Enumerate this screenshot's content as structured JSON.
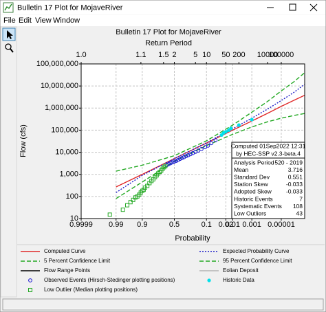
{
  "window": {
    "title": "Bulletin 17 Plot for MojaveRiver",
    "menu": [
      "File",
      "Edit",
      "View",
      "Window"
    ]
  },
  "chart_data": {
    "type": "probability",
    "title": "Bulletin 17 Plot for MojaveRiver",
    "x2_label": "Return Period",
    "x_label": "Probability",
    "y_label": "Flow (cfs)",
    "xscale": "normal-exceedance",
    "yscale": "log",
    "grid": true,
    "xlim": [
      0.9999,
      1e-07
    ],
    "xticks": [
      0.9999,
      0.99,
      0.9,
      0.5,
      0.1,
      0.02,
      0.01,
      0.001,
      {
        "value": 1e-05,
        "label": "0.00001"
      }
    ],
    "x2ticks": [
      {
        "value": 1.0001,
        "label": "1.0"
      },
      1.1,
      1.5,
      2,
      5,
      10,
      50,
      200,
      10000,
      100000
    ],
    "ylim": [
      10,
      100000000
    ],
    "yticks": [
      10,
      100,
      {
        "value": 1000,
        "label": "1,000"
      },
      {
        "value": 10000,
        "label": "10,000"
      },
      {
        "value": 100000,
        "label": "100,000"
      },
      {
        "value": 1000000,
        "label": "1,000,000"
      },
      {
        "value": 10000000,
        "label": "10,000,000"
      },
      {
        "value": 100000000,
        "label": "100,000,000"
      }
    ],
    "series": [
      {
        "name": "Computed Curve",
        "kind": "line",
        "style": "solid",
        "color": "#e02828",
        "x": [
          0.99,
          0.9,
          0.5,
          0.1,
          0.01,
          0.001,
          0.0001,
          1e-05,
          1e-06,
          1e-07
        ],
        "values": [
          270,
          1000,
          5200,
          26000,
          100000,
          260000,
          580000,
          1200000,
          2200000,
          3800000
        ]
      },
      {
        "name": "Expected Probability Curve",
        "kind": "line",
        "style": "dotted",
        "color": "#1c1cc8",
        "x": [
          0.99,
          0.9,
          0.5,
          0.1,
          0.01,
          0.001,
          0.0001,
          1e-05,
          1e-06,
          1e-07
        ],
        "values": [
          150,
          900,
          5200,
          27000,
          115000,
          350000,
          900000,
          2200000,
          5000000,
          12000000
        ]
      },
      {
        "name": "5 Percent Confidence Limit",
        "kind": "line",
        "style": "dashed",
        "color": "#22a822",
        "x": [
          0.99,
          0.9,
          0.5,
          0.1,
          0.01,
          0.001,
          0.0001,
          1e-05,
          1e-06,
          1e-07
        ],
        "values": [
          1400,
          2600,
          7000,
          33000,
          170000,
          650000,
          2000000,
          6000000,
          15000000,
          40000000
        ]
      },
      {
        "name": "95 Percent Confidence Limit",
        "kind": "line",
        "style": "dashed",
        "color": "#22a822",
        "x": [
          0.99,
          0.9,
          0.5,
          0.1,
          0.01,
          0.001,
          0.0001,
          1e-05,
          1e-06,
          1e-07
        ],
        "values": [
          80,
          450,
          3900,
          20000,
          65000,
          140000,
          240000,
          350000,
          460000,
          570000
        ]
      },
      {
        "name": "Flow Range Points",
        "kind": "line",
        "style": "solid",
        "color": "#000000",
        "x": [],
        "values": []
      },
      {
        "name": "Eolian Deposit",
        "kind": "line",
        "style": "solid",
        "color": "#b4b4b4",
        "x": [],
        "values": []
      },
      {
        "name": "Observed Events (Hirsch-Stedinger plotting positions)",
        "kind": "scatter",
        "marker": "circle",
        "color": "#1414d2",
        "x": [
          0.62,
          0.59,
          0.56,
          0.53,
          0.5,
          0.47,
          0.44,
          0.41,
          0.38,
          0.35,
          0.32,
          0.29,
          0.26,
          0.23,
          0.2,
          0.17,
          0.14,
          0.11,
          0.09,
          0.07,
          0.05
        ],
        "values": [
          2600,
          2900,
          3200,
          3500,
          3800,
          4100,
          4500,
          5000,
          5500,
          6000,
          6700,
          7400,
          8200,
          9200,
          10500,
          12000,
          14000,
          17000,
          20000,
          26000,
          35000
        ]
      },
      {
        "name": "Historic Data",
        "kind": "scatter",
        "marker": "dot",
        "color": "#00e0ea",
        "x": [
          0.03,
          0.025,
          0.02,
          0.015,
          0.012,
          0.005,
          0.001
        ],
        "values": [
          60000,
          75000,
          85000,
          100000,
          120000,
          170000,
          300000
        ]
      },
      {
        "name": "Low Outlier (Median plotting positions)",
        "kind": "scatter",
        "marker": "square",
        "color": "#22a822",
        "x": [
          0.995,
          0.98,
          0.97,
          0.96,
          0.95,
          0.94,
          0.93,
          0.92,
          0.91,
          0.9,
          0.89,
          0.88,
          0.86,
          0.84,
          0.82,
          0.8,
          0.78,
          0.76,
          0.74,
          0.72,
          0.7,
          0.68,
          0.66,
          0.64
        ],
        "values": [
          15,
          25,
          40,
          55,
          70,
          90,
          100,
          120,
          150,
          180,
          200,
          250,
          300,
          400,
          500,
          600,
          750,
          900,
          1100,
          1300,
          1500,
          1800,
          2100,
          2400
        ]
      }
    ],
    "stats": {
      "header": [
        "Computed 01Sep2022 12:31",
        "by HEC-SSP v2.3-beta.4"
      ],
      "rows": [
        [
          "Analysis Period",
          "520 - 2019"
        ],
        [
          "Mean",
          "3.716"
        ],
        [
          "Standard Dev",
          "0.551"
        ],
        [
          "Station Skew",
          "-0.033"
        ],
        [
          "Adopted Skew",
          "-0.033"
        ],
        [
          "Historic Events",
          "7"
        ],
        [
          "Systematic Events",
          "108"
        ],
        [
          "Low Outliers",
          "43"
        ]
      ]
    }
  }
}
